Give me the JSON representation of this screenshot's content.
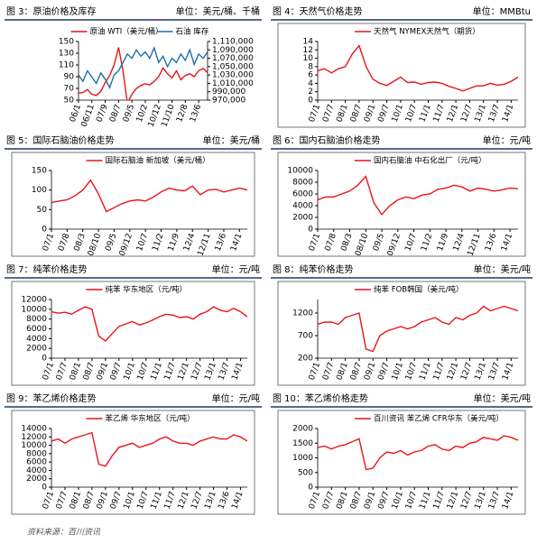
{
  "charts": [
    {
      "chart_data": {
        "type": "line",
        "title": "图 3：原油价格及库存",
        "unit": "单位：美元/桶、千桶",
        "categories": [
          "06/1",
          null,
          null,
          "06/11",
          null,
          null,
          "07/9",
          null,
          null,
          "08/7",
          null,
          null,
          "09/5",
          null,
          null,
          "10/2",
          null,
          null,
          "10/12",
          null,
          null,
          "11/10",
          null,
          null,
          "12/8",
          null,
          null,
          "13/6",
          null,
          null
        ],
        "ylim": [
          50,
          150
        ],
        "yticks": [
          50,
          70,
          90,
          110,
          130,
          150
        ],
        "y2lim": [
          970000,
          1110000
        ],
        "y2ticks": [
          {
            "value": 970000,
            "label": "970,000"
          },
          {
            "value": 990000,
            "label": "990,000"
          },
          {
            "value": 1010000,
            "label": "1,010,000"
          },
          {
            "value": 1030000,
            "label": "1,030,000"
          },
          {
            "value": 1050000,
            "label": "1,050,000"
          },
          {
            "value": 1070000,
            "label": "1,070,000"
          },
          {
            "value": 1090000,
            "label": "1,090,000"
          },
          {
            "value": 1110000,
            "label": "1,110,000"
          }
        ],
        "series": [
          {
            "name": "原油 WTI（美元/桶）",
            "color": "#e8141b",
            "values": [
              62,
              63,
              68,
              60,
              58,
              65,
              80,
              92,
              110,
              140,
              100,
              45,
              60,
              70,
              75,
              78,
              76,
              82,
              90,
              105,
              95,
              88,
              100,
              85,
              92,
              95,
              90,
              100,
              104,
              97
            ]
          },
          {
            "name": "石油 库存",
            "color": "#1f6fa8",
            "axis": "y2",
            "values": [
              1030000,
              1015000,
              1040000,
              1025000,
              1010000,
              1035000,
              1020000,
              1000000,
              1030000,
              1040000,
              1060000,
              1080000,
              1070000,
              1090000,
              1075000,
              1085000,
              1070000,
              1095000,
              1060000,
              1075000,
              1050000,
              1070000,
              1060000,
              1080000,
              1065000,
              1090000,
              1055000,
              1080000,
              1070000,
              1085000
            ]
          }
        ]
      }
    },
    {
      "chart_data": {
        "type": "line",
        "title": "图 4：天然气价格走势",
        "unit": "单位：MMBtu",
        "categories": [
          "07/1",
          null,
          "07/7",
          null,
          "08/1",
          null,
          "08/7",
          null,
          "09/1",
          null,
          "09/7",
          null,
          "10/1",
          null,
          "10/7",
          null,
          "11/1",
          null,
          "11/7",
          null,
          "12/1",
          null,
          "12/7",
          null,
          "13/1",
          null,
          "13/7",
          null,
          "14/1",
          null
        ],
        "ylim": [
          0,
          14
        ],
        "yticks": [
          0,
          2,
          4,
          6,
          8,
          10,
          12,
          14
        ],
        "series": [
          {
            "name": "天然气 NYMEX天然气（期货）",
            "color": "#e8141b",
            "values": [
              7,
              7.5,
              6.5,
              7.5,
              8,
              11,
              13,
              8,
              5,
              4,
              3.5,
              4.5,
              5.5,
              4.2,
              4.3,
              3.8,
              4.2,
              4.3,
              4,
              3.3,
              2.8,
              2.2,
              2.8,
              3.4,
              3.4,
              4,
              3.6,
              3.8,
              4.5,
              5.5
            ]
          }
        ]
      }
    },
    {
      "chart_data": {
        "type": "line",
        "title": "图 5：国际石脑油价格走势",
        "unit": "单位：美元/桶",
        "categories": [
          "07/1",
          null,
          "07/8",
          null,
          "08/3",
          null,
          "08/10",
          null,
          "09/5",
          null,
          "09/12",
          null,
          "10/7",
          null,
          "11/2",
          null,
          "11/9",
          null,
          "12/4",
          null,
          "12/11",
          null,
          "13/6",
          null,
          "14/1",
          null
        ],
        "ylim": [
          0,
          150
        ],
        "yticks": [
          0,
          50,
          100,
          150
        ],
        "series": [
          {
            "name": "国际石脑油 新加坡（美元/桶）",
            "color": "#e8141b",
            "values": [
              68,
              72,
              75,
              85,
              100,
              125,
              90,
              45,
              55,
              65,
              72,
              75,
              72,
              82,
              95,
              105,
              100,
              98,
              110,
              88,
              100,
              102,
              95,
              100,
              105,
              100
            ]
          }
        ]
      }
    },
    {
      "chart_data": {
        "type": "line",
        "title": "图 6：国内石脑油价格走势",
        "unit": "单位：元/吨",
        "categories": [
          "07/1",
          null,
          "07/8",
          null,
          "08/3",
          null,
          "08/10",
          null,
          "09/5",
          null,
          "09/12",
          null,
          "10/7",
          null,
          "11/2",
          null,
          "11/9",
          null,
          "12/4",
          null,
          "12/11",
          null,
          "13/6",
          null,
          "14/1",
          null
        ],
        "ylim": [
          0,
          10000
        ],
        "yticks": [
          0,
          2000,
          4000,
          6000,
          8000,
          10000
        ],
        "series": [
          {
            "name": "国内石脑油 中石化出厂（元/吨）",
            "color": "#e8141b",
            "values": [
              5000,
              5500,
              5500,
              6000,
              6500,
              7500,
              9000,
              4500,
              2500,
              4000,
              5000,
              5500,
              5200,
              5800,
              6000,
              6800,
              7000,
              7500,
              7200,
              6500,
              7000,
              6800,
              6500,
              6700,
              7000,
              6900
            ]
          }
        ]
      }
    },
    {
      "chart_data": {
        "type": "line",
        "title": "图 7：纯苯价格走势",
        "unit": "单位：元/吨",
        "categories": [
          "07/1",
          null,
          "07/7",
          null,
          "08/1",
          null,
          "08/7",
          null,
          "09/1",
          null,
          "09/7",
          null,
          "10/1",
          null,
          "10/7",
          null,
          "11/1",
          null,
          "11/7",
          null,
          "12/1",
          null,
          "12/7",
          null,
          "13/1",
          null,
          "13/7",
          null,
          "14/1",
          null
        ],
        "ylim": [
          0,
          12000
        ],
        "yticks": [
          0,
          2000,
          4000,
          6000,
          8000,
          10000,
          12000
        ],
        "series": [
          {
            "name": "纯苯 华东地区（元/吨）",
            "color": "#e8141b",
            "values": [
              9500,
              9200,
              9400,
              9000,
              9800,
              10500,
              10000,
              4500,
              3500,
              5000,
              6500,
              7000,
              7500,
              6800,
              7200,
              7800,
              8500,
              9000,
              8800,
              8300,
              8500,
              8000,
              9000,
              9500,
              10500,
              9800,
              9500,
              10200,
              9500,
              8500
            ]
          }
        ]
      }
    },
    {
      "chart_data": {
        "type": "line",
        "title": "图 8：纯苯价格走势",
        "unit": "单位：美元/吨",
        "categories": [
          "07/1",
          null,
          "07/7",
          null,
          "08/1",
          null,
          "08/7",
          null,
          "09/1",
          null,
          "09/7",
          null,
          "10/1",
          null,
          "10/7",
          null,
          "11/1",
          null,
          "11/7",
          null,
          "12/1",
          null,
          "12/7",
          null,
          "13/1",
          null,
          "13/7",
          null,
          "14/1",
          null
        ],
        "ylim": [
          200,
          1500
        ],
        "yticks": [
          200,
          700,
          1200
        ],
        "series": [
          {
            "name": "纯苯 FOB韩国（美元/吨）",
            "color": "#e8141b",
            "values": [
              950,
              1000,
              1000,
              950,
              1100,
              1150,
              1200,
              400,
              350,
              700,
              800,
              850,
              900,
              850,
              900,
              1000,
              1050,
              1100,
              1000,
              950,
              1100,
              1050,
              1150,
              1200,
              1350,
              1250,
              1300,
              1350,
              1300,
              1250
            ]
          }
        ]
      }
    },
    {
      "chart_data": {
        "type": "line",
        "title": "图 9：苯乙烯价格走势",
        "unit": "单位：元/吨",
        "categories": [
          "07/1",
          null,
          "07/7",
          null,
          "08/1",
          null,
          "08/7",
          null,
          "09/1",
          null,
          "09/7",
          null,
          "10/1",
          null,
          "10/7",
          null,
          "11/1",
          null,
          "11/7",
          null,
          "12/1",
          null,
          "12/7",
          null,
          "13/1",
          null,
          "13/6",
          null,
          "14/1",
          null
        ],
        "ylim": [
          0,
          14000
        ],
        "yticks": [
          0,
          2000,
          4000,
          6000,
          8000,
          10000,
          12000,
          14000
        ],
        "series": [
          {
            "name": "苯乙烯 华东地区（元/吨）",
            "color": "#e8141b",
            "values": [
              11000,
              11500,
              10500,
              11500,
              12000,
              12500,
              13000,
              5500,
              5000,
              7500,
              9500,
              10000,
              10500,
              9500,
              10000,
              10500,
              11500,
              12000,
              11000,
              10500,
              10500,
              10000,
              11000,
              11500,
              12000,
              11500,
              11500,
              12500,
              12000,
              11000
            ]
          }
        ]
      }
    },
    {
      "chart_data": {
        "type": "line",
        "title": "图 10：苯乙烯价格走势",
        "unit": "单位：美元/吨",
        "categories": [
          "07/1",
          null,
          "07/7",
          null,
          "08/1",
          null,
          "08/7",
          null,
          "09/1",
          null,
          "09/7",
          null,
          "10/1",
          null,
          "10/7",
          null,
          "11/1",
          null,
          "11/7",
          null,
          "12/1",
          null,
          "12/7",
          null,
          "13/1",
          null,
          "13/7",
          null,
          "14/1",
          null
        ],
        "ylim": [
          0,
          2000
        ],
        "yticks": [
          0,
          500,
          1000,
          1500,
          2000
        ],
        "series": [
          {
            "name": "百川资讯 苯乙烯 CFR华东（美元/吨）",
            "color": "#e8141b",
            "values": [
              1350,
              1400,
              1300,
              1400,
              1450,
              1550,
              1650,
              600,
              650,
              1000,
              1200,
              1150,
              1250,
              1100,
              1200,
              1250,
              1400,
              1450,
              1300,
              1250,
              1400,
              1350,
              1500,
              1550,
              1700,
              1650,
              1600,
              1750,
              1700,
              1600
            ]
          }
        ]
      }
    }
  ],
  "source": "资料来源：百川资讯"
}
